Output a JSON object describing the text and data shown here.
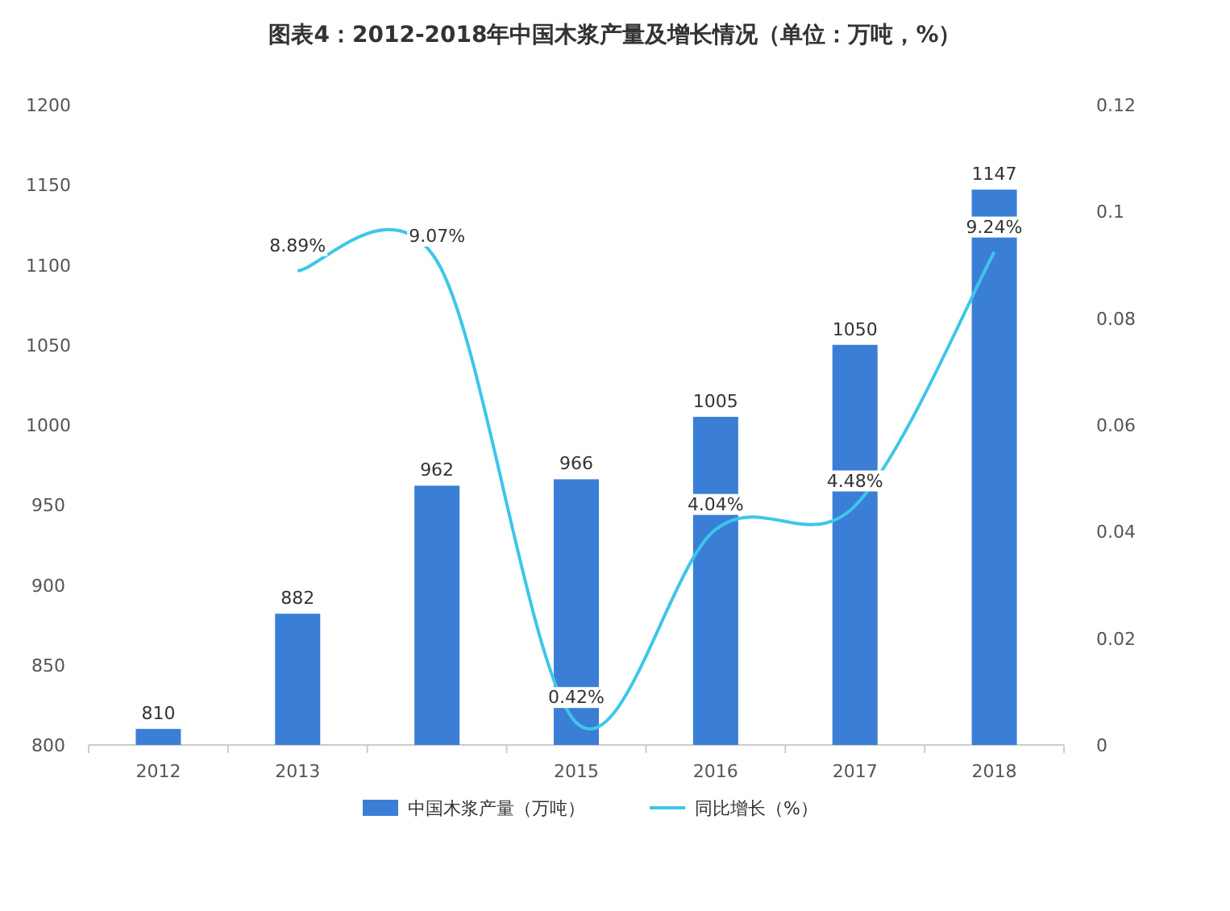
{
  "chart_data": {
    "type": "bar",
    "title": "图表4：2012-2018年中国木浆产量及增长情况（单位：万吨，%）",
    "categories": [
      "2012",
      "2013",
      null,
      "2015",
      "2016",
      "2017",
      "2018"
    ],
    "series": [
      {
        "name": "中国木浆产量（万吨）",
        "color": "#3a7fd5",
        "values": [
          810,
          882,
          962,
          966,
          1005,
          1050,
          1147
        ],
        "data_labels": true
      },
      {
        "name": "同比增长（%）",
        "type": "line",
        "axis": "y2",
        "color": "#3ec6e8",
        "values": [
          null,
          0.0889,
          0.0907,
          0.0042,
          0.0404,
          0.0448,
          0.0924
        ],
        "value_labels": [
          null,
          "8.89%",
          "9.07%",
          "0.42%",
          "4.04%",
          "4.48%",
          "9.24%"
        ],
        "marker": "none"
      }
    ],
    "ylim": [
      800,
      1200
    ],
    "yticks": [
      800,
      850,
      900,
      950,
      1000,
      1050,
      1100,
      1150,
      1200
    ],
    "y2lim": [
      0,
      0.12
    ],
    "y2ticks": [
      0,
      0.02,
      0.04,
      0.06,
      0.08,
      0.1,
      0.12
    ],
    "grid": false,
    "legend": "bottom"
  }
}
